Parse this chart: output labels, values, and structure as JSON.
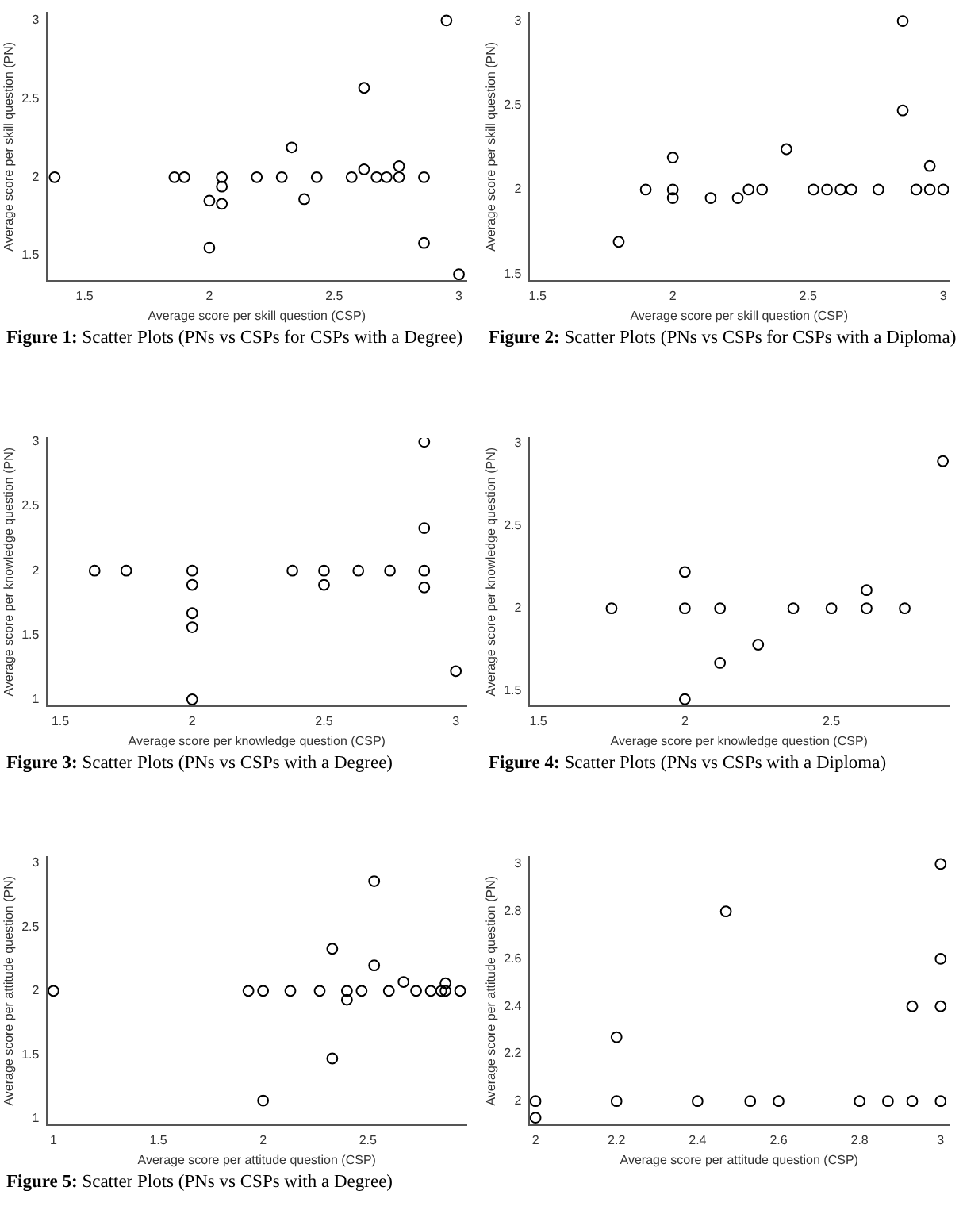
{
  "chart_data": [
    {
      "type": "scatter",
      "title": "Figure 1: Scatter Plots (PNs vs CSPs for CSPs with a Degree)",
      "xlabel": "Average score per skill question (CSP)",
      "ylabel": "Average score per skill question (PN)",
      "color": "#000000",
      "marker": "circle",
      "x": [
        1.38,
        1.86,
        1.9,
        2.05,
        2.05,
        2,
        2.05,
        2,
        2.19,
        2.29,
        2.33,
        2.38,
        2.43,
        2.57,
        2.62,
        2.62,
        2.67,
        2.71,
        2.76,
        2.76,
        2.86,
        2.86,
        2.95,
        3
      ],
      "values": [
        2,
        2,
        2,
        2,
        1.94,
        1.85,
        1.83,
        1.55,
        2,
        2,
        2.19,
        1.86,
        2,
        2,
        2.57,
        2.05,
        2,
        2,
        2,
        2.07,
        2,
        1.58,
        3,
        1.38
      ],
      "xlim": [
        1.35,
        3.03
      ],
      "ylim": [
        1.34,
        3.05
      ],
      "xticks": [
        1.5,
        2,
        2.5,
        3
      ],
      "yticks": [
        1.5,
        2,
        2.5,
        3
      ]
    },
    {
      "type": "scatter",
      "title": "Figure 2: Scatter Plots (PNs vs CSPs for CSPs with a Diploma)",
      "xlabel": "Average score per skill question (CSP)",
      "ylabel": "Average score per skill question (PN)",
      "color": "#000000",
      "marker": "circle",
      "x": [
        1.8,
        1.9,
        2,
        2,
        2,
        2.14,
        2.24,
        2.28,
        2.33,
        2.42,
        2.52,
        2.57,
        2.62,
        2.66,
        2.76,
        2.85,
        2.85,
        2.9,
        2.95,
        2.95,
        3
      ],
      "values": [
        1.69,
        2,
        2.19,
        2,
        1.95,
        1.95,
        1.95,
        2,
        2,
        2.24,
        2,
        2,
        2,
        2,
        2,
        3,
        2.47,
        2,
        2.14,
        2,
        2
      ],
      "xlim": [
        1.47,
        3.02
      ],
      "ylim": [
        1.46,
        3.05
      ],
      "xticks": [
        1.5,
        2,
        2.5,
        3
      ],
      "yticks": [
        1.5,
        2,
        2.5,
        3
      ]
    },
    {
      "type": "scatter",
      "title": "Figure 3: Scatter Plots (PNs vs CSPs with a Degree)",
      "xlabel": "Average score per knowledge question (CSP)",
      "ylabel": "Average score per knowledge question (PN)",
      "color": "#000000",
      "marker": "circle",
      "x": [
        1.63,
        1.75,
        2,
        2,
        2,
        2,
        2,
        2.38,
        2.5,
        2.5,
        2.63,
        2.75,
        2.88,
        2.88,
        2.88,
        2.88,
        3
      ],
      "values": [
        2,
        2,
        2,
        1.89,
        1.67,
        1.56,
        1,
        2,
        2,
        1.89,
        2,
        2,
        3,
        2.33,
        2,
        1.87,
        1.22
      ],
      "xlim": [
        1.45,
        3.04
      ],
      "ylim": [
        0.95,
        3.03
      ],
      "xticks": [
        1.5,
        2,
        2.5,
        3
      ],
      "yticks": [
        1,
        1.5,
        2,
        2.5,
        3
      ]
    },
    {
      "type": "scatter",
      "title": "Figure 4: Scatter Plots (PNs vs CSPs with a Diploma)",
      "xlabel": "Average score per knowledge question (CSP)",
      "ylabel": "Average score per knowledge question (PN)",
      "color": "#000000",
      "marker": "circle",
      "x": [
        1.75,
        2,
        2,
        2,
        2.12,
        2.12,
        2.25,
        2.37,
        2.5,
        2.62,
        2.62,
        2.75,
        2.88
      ],
      "values": [
        2,
        2.22,
        2,
        1.45,
        2,
        1.67,
        1.78,
        2,
        2,
        2.11,
        2,
        2,
        2.89
      ],
      "xlim": [
        1.47,
        2.9
      ],
      "ylim": [
        1.41,
        3.03
      ],
      "xticks": [
        1.5,
        2,
        2.5
      ],
      "yticks": [
        1.5,
        2,
        2.5,
        3
      ]
    },
    {
      "type": "scatter",
      "title": "Figure 5: Scatter Plots (PNs vs CSPs with a Degree)",
      "xlabel": "Average score per attitude question (CSP)",
      "ylabel": "Average score per attitude question (PN)",
      "color": "#000000",
      "marker": "circle",
      "x": [
        1,
        1.93,
        2,
        2,
        2.13,
        2.27,
        2.33,
        2.33,
        2.4,
        2.4,
        2.47,
        2.53,
        2.53,
        2.6,
        2.67,
        2.73,
        2.8,
        2.85,
        2.87,
        2.87,
        2.94
      ],
      "values": [
        2,
        2,
        2,
        1.14,
        2,
        2,
        2.33,
        1.47,
        2,
        1.93,
        2,
        2.86,
        2.2,
        2,
        2.07,
        2,
        2,
        2,
        2.06,
        2,
        2
      ],
      "xlim": [
        0.97,
        2.97
      ],
      "ylim": [
        0.95,
        3.05
      ],
      "xticks": [
        1,
        1.5,
        2,
        2.5
      ],
      "yticks": [
        1,
        1.5,
        2,
        2.5,
        3
      ]
    },
    {
      "type": "scatter",
      "xlabel": "Average score per attitude question (CSP)",
      "ylabel": "Average score per attitude question (PN)",
      "color": "#000000",
      "marker": "circle",
      "x": [
        2,
        2,
        2.2,
        2.2,
        2.4,
        2.47,
        2.53,
        2.6,
        2.8,
        2.87,
        2.93,
        2.93,
        3,
        3,
        3,
        3
      ],
      "values": [
        2,
        1.93,
        2.27,
        2,
        2,
        2.8,
        2,
        2,
        2,
        2,
        2.4,
        2,
        3,
        2.6,
        2.4,
        2
      ],
      "xlim": [
        1.985,
        3.02
      ],
      "ylim": [
        1.9,
        3.03
      ],
      "xticks": [
        2,
        2.2,
        2.4,
        2.6,
        2.8,
        3
      ],
      "yticks": [
        2,
        2.2,
        2.4,
        2.6,
        2.8,
        3
      ]
    }
  ]
}
